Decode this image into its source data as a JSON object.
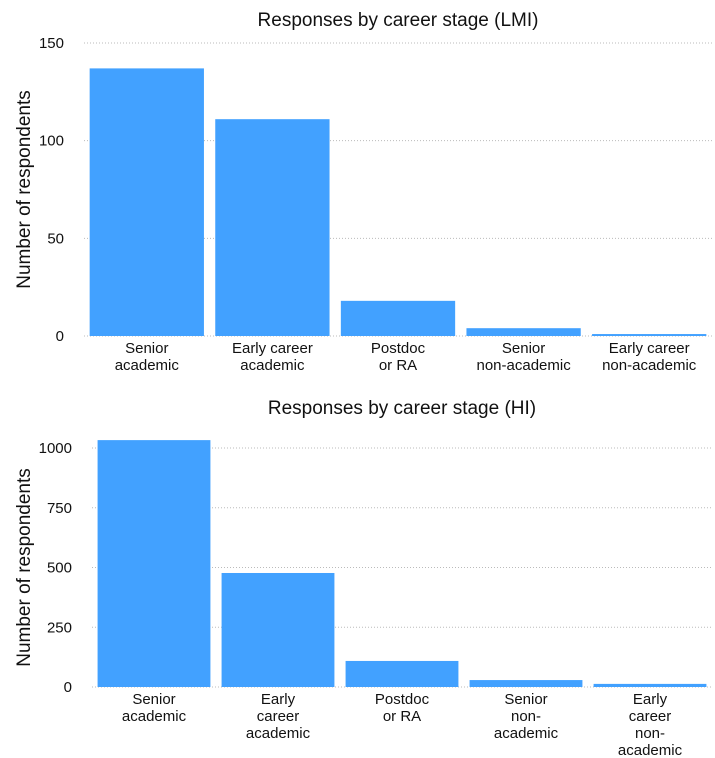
{
  "chart_data": [
    {
      "type": "bar",
      "title": "Responses by career stage (LMI)",
      "y_label": "Number of respondents",
      "categories": [
        [
          "Senior",
          "academic"
        ],
        [
          "Early career",
          "academic"
        ],
        [
          "Postdoc",
          "or RA"
        ],
        [
          "Senior",
          "non-academic"
        ],
        [
          "Early career",
          "non-academic"
        ]
      ],
      "values": [
        137,
        111,
        18,
        4,
        1
      ],
      "color": "#42a1ff",
      "ylim": [
        0,
        150
      ],
      "yticks": [
        0,
        50,
        100,
        150
      ],
      "grid": true
    },
    {
      "type": "bar",
      "title": "Responses by career stage (HI)",
      "y_label": "Number of respondents",
      "categories": [
        [
          "Senior",
          "academic"
        ],
        [
          "Early",
          "career",
          "academic"
        ],
        [
          "Postdoc",
          "or RA"
        ],
        [
          "Senior",
          "non-",
          "academic"
        ],
        [
          "Early",
          "career",
          "non-",
          "academic"
        ]
      ],
      "values": [
        1033,
        477,
        109,
        29,
        13
      ],
      "color": "#42a1ff",
      "ylim": [
        0,
        1000
      ],
      "yticks": [
        0,
        250,
        500,
        750,
        1000
      ],
      "grid": true
    }
  ]
}
